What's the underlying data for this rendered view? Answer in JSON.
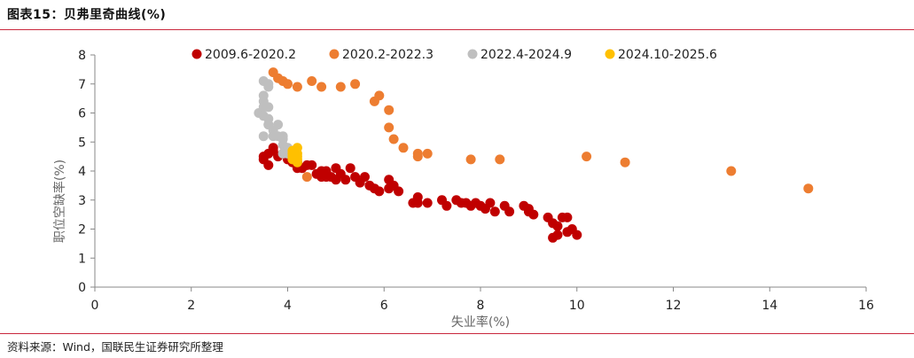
{
  "figure": {
    "title": "图表15：贝弗里奇曲线(%)",
    "source": "资料来源：Wind，国联民生证券研究所整理"
  },
  "chart_data": {
    "type": "scatter",
    "xlabel": "失业率(%)",
    "ylabel": "职位空缺率(%)",
    "xlim": [
      0,
      16
    ],
    "ylim": [
      0,
      8
    ],
    "xticks": [
      0,
      2,
      4,
      6,
      8,
      10,
      12,
      14,
      16
    ],
    "yticks": [
      0,
      1,
      2,
      3,
      4,
      5,
      6,
      7,
      8
    ],
    "legend_position": "top",
    "series": [
      {
        "name": "2009.6-2020.2",
        "color": "#c00000",
        "points": [
          [
            3.5,
            4.5
          ],
          [
            3.5,
            4.4
          ],
          [
            3.6,
            4.2
          ],
          [
            3.6,
            4.6
          ],
          [
            3.7,
            4.7
          ],
          [
            3.7,
            4.8
          ],
          [
            3.8,
            4.5
          ],
          [
            3.9,
            4.6
          ],
          [
            4.0,
            4.4
          ],
          [
            4.1,
            4.3
          ],
          [
            4.1,
            4.5
          ],
          [
            4.2,
            4.3
          ],
          [
            4.2,
            4.1
          ],
          [
            4.3,
            4.1
          ],
          [
            4.4,
            4.2
          ],
          [
            4.5,
            4.2
          ],
          [
            4.6,
            3.9
          ],
          [
            4.7,
            4.0
          ],
          [
            4.7,
            3.8
          ],
          [
            4.8,
            4.0
          ],
          [
            4.8,
            3.8
          ],
          [
            4.9,
            3.8
          ],
          [
            5.0,
            3.7
          ],
          [
            5.0,
            4.1
          ],
          [
            5.1,
            3.9
          ],
          [
            5.2,
            3.7
          ],
          [
            5.3,
            4.1
          ],
          [
            5.4,
            3.8
          ],
          [
            5.5,
            3.6
          ],
          [
            5.6,
            3.8
          ],
          [
            5.7,
            3.5
          ],
          [
            5.8,
            3.4
          ],
          [
            5.9,
            3.3
          ],
          [
            6.1,
            3.7
          ],
          [
            6.1,
            3.4
          ],
          [
            6.2,
            3.5
          ],
          [
            6.3,
            3.3
          ],
          [
            6.6,
            2.9
          ],
          [
            6.7,
            2.9
          ],
          [
            6.7,
            3.1
          ],
          [
            6.9,
            2.9
          ],
          [
            7.2,
            3.0
          ],
          [
            7.3,
            2.8
          ],
          [
            7.5,
            3.0
          ],
          [
            7.6,
            2.9
          ],
          [
            7.7,
            2.9
          ],
          [
            7.8,
            2.8
          ],
          [
            7.9,
            2.9
          ],
          [
            8.0,
            2.8
          ],
          [
            8.1,
            2.7
          ],
          [
            8.2,
            2.9
          ],
          [
            8.3,
            2.6
          ],
          [
            8.5,
            2.8
          ],
          [
            8.6,
            2.6
          ],
          [
            8.9,
            2.8
          ],
          [
            9.0,
            2.6
          ],
          [
            9.0,
            2.7
          ],
          [
            9.1,
            2.5
          ],
          [
            9.4,
            2.4
          ],
          [
            9.5,
            2.2
          ],
          [
            9.5,
            1.7
          ],
          [
            9.6,
            1.8
          ],
          [
            9.6,
            2.1
          ],
          [
            9.7,
            2.4
          ],
          [
            9.8,
            2.4
          ],
          [
            9.8,
            1.9
          ],
          [
            9.9,
            2.0
          ],
          [
            10.0,
            1.8
          ]
        ]
      },
      {
        "name": "2020.2-2022.3",
        "color": "#ed7d31",
        "points": [
          [
            3.7,
            7.4
          ],
          [
            3.8,
            7.2
          ],
          [
            3.9,
            7.1
          ],
          [
            4.0,
            7.0
          ],
          [
            4.2,
            6.9
          ],
          [
            4.5,
            7.1
          ],
          [
            4.7,
            6.9
          ],
          [
            5.1,
            6.9
          ],
          [
            5.4,
            7.0
          ],
          [
            5.8,
            6.4
          ],
          [
            5.9,
            6.6
          ],
          [
            6.1,
            6.1
          ],
          [
            6.1,
            5.5
          ],
          [
            6.2,
            5.1
          ],
          [
            6.4,
            4.8
          ],
          [
            6.7,
            4.6
          ],
          [
            6.7,
            4.5
          ],
          [
            6.9,
            4.6
          ],
          [
            7.8,
            4.4
          ],
          [
            8.4,
            4.4
          ],
          [
            10.2,
            4.5
          ],
          [
            11.0,
            4.3
          ],
          [
            13.2,
            4.0
          ],
          [
            14.8,
            3.4
          ],
          [
            4.4,
            3.8
          ]
        ]
      },
      {
        "name": "2022.4-2024.9",
        "color": "#bfbfbf",
        "points": [
          [
            3.4,
            6.0
          ],
          [
            3.5,
            6.4
          ],
          [
            3.5,
            6.2
          ],
          [
            3.5,
            6.6
          ],
          [
            3.5,
            7.1
          ],
          [
            3.6,
            6.9
          ],
          [
            3.6,
            7.0
          ],
          [
            3.6,
            6.2
          ],
          [
            3.6,
            5.8
          ],
          [
            3.6,
            5.6
          ],
          [
            3.5,
            5.9
          ],
          [
            3.6,
            5.6
          ],
          [
            3.7,
            5.4
          ],
          [
            3.8,
            5.6
          ],
          [
            3.5,
            5.2
          ],
          [
            3.7,
            5.2
          ],
          [
            3.8,
            5.2
          ],
          [
            3.9,
            5.1
          ],
          [
            3.9,
            4.9
          ],
          [
            4.0,
            4.8
          ],
          [
            4.0,
            4.6
          ],
          [
            4.1,
            4.7
          ],
          [
            3.9,
            5.2
          ],
          [
            3.9,
            4.6
          ]
        ]
      },
      {
        "name": "2024.10-2025.6",
        "color": "#ffc000",
        "points": [
          [
            4.1,
            4.7
          ],
          [
            4.1,
            4.5
          ],
          [
            4.2,
            4.6
          ],
          [
            4.2,
            4.8
          ],
          [
            4.2,
            4.4
          ],
          [
            4.1,
            4.4
          ],
          [
            4.2,
            4.3
          ],
          [
            4.1,
            4.6
          ],
          [
            4.2,
            4.5
          ]
        ]
      }
    ]
  }
}
